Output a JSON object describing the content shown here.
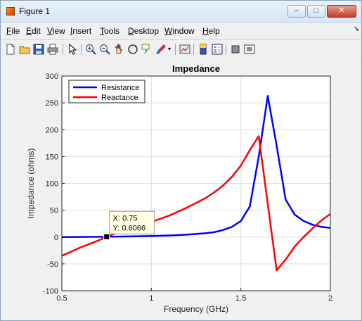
{
  "window": {
    "title": "Figure 1",
    "controls": {
      "minimize": "–",
      "maximize": "□",
      "close": "✕"
    }
  },
  "menubar": {
    "items": [
      {
        "label": "File",
        "mnemonic": "F",
        "rest": "ile"
      },
      {
        "label": "Edit",
        "mnemonic": "E",
        "rest": "dit"
      },
      {
        "label": "View",
        "mnemonic": "V",
        "rest": "iew"
      },
      {
        "label": "Insert",
        "mnemonic": "I",
        "rest": "nsert"
      },
      {
        "label": "Tools",
        "mnemonic": "T",
        "rest": "ools"
      },
      {
        "label": "Desktop",
        "mnemonic": "D",
        "rest": "esktop"
      },
      {
        "label": "Window",
        "mnemonic": "W",
        "rest": "indow"
      },
      {
        "label": "Help",
        "mnemonic": "H",
        "rest": "elp"
      }
    ]
  },
  "toolbar": {
    "icons": [
      "new-figure-icon",
      "open-file-icon",
      "save-icon",
      "print-icon",
      "pointer-icon",
      "zoom-in-icon",
      "zoom-out-icon",
      "pan-icon",
      "rotate-3d-icon",
      "data-cursor-icon",
      "brush-icon",
      "link-plot-icon",
      "colorbar-icon",
      "legend-icon",
      "hide-plot-tools-icon",
      "show-plot-tools-icon"
    ]
  },
  "colors": {
    "resistance": "#0000ff",
    "reactance": "#ff0000",
    "axes_background": "#ffffff",
    "figure_background": "#f0f0f0",
    "datatip_background": "#ffffe1"
  },
  "chart_data": {
    "type": "line",
    "title": "Impedance",
    "xlabel": "Frequency (GHz)",
    "ylabel": "Impedance (ohms)",
    "xlim": [
      0.5,
      2
    ],
    "ylim": [
      -100,
      300
    ],
    "xticks": [
      0.5,
      1,
      1.5,
      2
    ],
    "xtick_labels": [
      "0.5",
      "1",
      "1.5",
      "2"
    ],
    "yticks": [
      -100,
      -50,
      0,
      50,
      100,
      150,
      200,
      250,
      300
    ],
    "ytick_labels": [
      "-100",
      "-50",
      "0",
      "50",
      "100",
      "150",
      "200",
      "250",
      "300"
    ],
    "grid": true,
    "legend_location": "top-left",
    "series": [
      {
        "name": "Resistance",
        "color": "#0000ff",
        "x": [
          0.5,
          0.6,
          0.7,
          0.8,
          0.9,
          1.0,
          1.1,
          1.2,
          1.3,
          1.35,
          1.4,
          1.45,
          1.5,
          1.55,
          1.6,
          1.65,
          1.7,
          1.75,
          1.8,
          1.85,
          1.9,
          1.95,
          2.0
        ],
        "y": [
          0.1,
          0.25,
          0.45,
          0.8,
          1.3,
          2,
          3,
          4.5,
          7,
          9,
          13,
          19,
          30,
          57,
          150,
          263,
          170,
          70,
          42,
          30,
          23,
          19,
          17
        ]
      },
      {
        "name": "Reactance",
        "color": "#ff0000",
        "x": [
          0.5,
          0.6,
          0.7,
          0.75,
          0.8,
          0.9,
          1.0,
          1.1,
          1.2,
          1.3,
          1.35,
          1.4,
          1.45,
          1.5,
          1.55,
          1.6,
          1.65,
          1.7,
          1.75,
          1.8,
          1.85,
          1.9,
          1.95,
          2.0
        ],
        "y": [
          -35,
          -20,
          -7,
          0.6066,
          7,
          18,
          28,
          40,
          55,
          72,
          83,
          96,
          112,
          133,
          162,
          188,
          62,
          -62,
          -42,
          -18,
          0,
          16,
          31,
          43
        ]
      }
    ],
    "datatip": {
      "x_text": "X: 0.75",
      "y_text": "Y: 0.6066",
      "x": 0.75,
      "y": 0.6066
    }
  }
}
